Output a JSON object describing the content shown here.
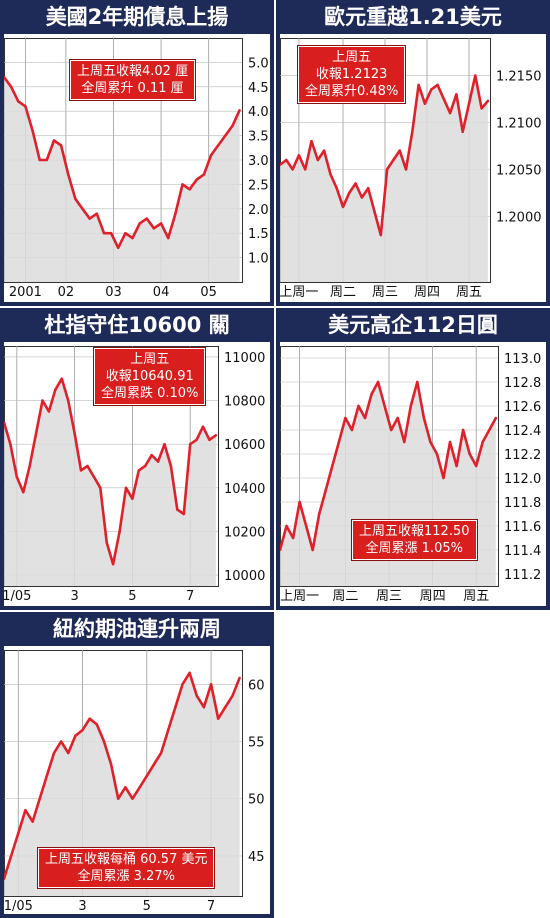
{
  "colors": {
    "panel": "#1e2a58",
    "line": "#e0202a",
    "fill": "#dcdcdc",
    "note": "#d91e1e"
  },
  "chart_data": [
    {
      "type": "area",
      "title": "美國2年期債息上揚",
      "annotation": [
        "上周五收報4.02 厘",
        "全周累升 0.11 厘"
      ],
      "ylim": [
        0.5,
        5.5
      ],
      "yticks": [
        1.0,
        1.5,
        2.0,
        2.5,
        3.0,
        3.5,
        4.0,
        4.5,
        5.0
      ],
      "ytick_labels": [
        "1.0",
        "1.5",
        "2.0",
        "2.5",
        "3.0",
        "3.5",
        "4.0",
        "4.5",
        "5.0"
      ],
      "xlim": [
        0,
        100
      ],
      "xticks": [
        {
          "x": 9,
          "label": "2001"
        },
        {
          "x": 26,
          "label": "02"
        },
        {
          "x": 46,
          "label": "03"
        },
        {
          "x": 66,
          "label": "04"
        },
        {
          "x": 86,
          "label": "05"
        }
      ],
      "series": [
        {
          "x": [
            0,
            3,
            6,
            9,
            12,
            15,
            18,
            21,
            24,
            27,
            30,
            33,
            36,
            39,
            42,
            45,
            48,
            51,
            54,
            57,
            60,
            63,
            66,
            69,
            72,
            75,
            78,
            81,
            84,
            87,
            90,
            93,
            96,
            99
          ],
          "y": [
            4.7,
            4.5,
            4.2,
            4.1,
            3.6,
            3.0,
            3.0,
            3.4,
            3.3,
            2.7,
            2.2,
            2.0,
            1.8,
            1.9,
            1.5,
            1.5,
            1.2,
            1.5,
            1.4,
            1.7,
            1.8,
            1.6,
            1.7,
            1.4,
            1.9,
            2.5,
            2.4,
            2.6,
            2.7,
            3.1,
            3.3,
            3.5,
            3.7,
            4.02
          ]
        }
      ]
    },
    {
      "type": "area",
      "title": "歐元重越1.21美元",
      "annotation": [
        "上周五",
        "收報1.2123",
        "全周累升0.48%"
      ],
      "ylim": [
        1.193,
        1.219
      ],
      "yticks": [
        1.2,
        1.205,
        1.21,
        1.215
      ],
      "ytick_labels": [
        "1.2000",
        "1.2050",
        "1.2100",
        "1.2150"
      ],
      "xlim": [
        0,
        100
      ],
      "xticks": [
        {
          "x": 9,
          "label": "上周一"
        },
        {
          "x": 30,
          "label": "周二"
        },
        {
          "x": 50,
          "label": "周三"
        },
        {
          "x": 70,
          "label": "周四"
        },
        {
          "x": 90,
          "label": "周五"
        }
      ],
      "series": [
        {
          "x": [
            0,
            3,
            6,
            9,
            12,
            15,
            18,
            21,
            24,
            27,
            30,
            33,
            36,
            39,
            42,
            45,
            48,
            51,
            54,
            57,
            60,
            63,
            66,
            69,
            72,
            75,
            78,
            81,
            84,
            87,
            90,
            93,
            96,
            99
          ],
          "y": [
            1.2055,
            1.206,
            1.205,
            1.2065,
            1.205,
            1.208,
            1.206,
            1.207,
            1.2045,
            1.203,
            1.201,
            1.2025,
            1.2035,
            1.202,
            1.203,
            1.2005,
            1.198,
            1.205,
            1.206,
            1.207,
            1.205,
            1.209,
            1.214,
            1.212,
            1.2135,
            1.214,
            1.2125,
            1.211,
            1.213,
            1.209,
            1.212,
            1.215,
            1.2115,
            1.2123
          ]
        }
      ]
    },
    {
      "type": "area",
      "title": "杜指守住10600 關",
      "annotation": [
        "上周五",
        "收報10640.91",
        "全周累跌 0.10%"
      ],
      "ylim": [
        9950,
        11050
      ],
      "yticks": [
        10000,
        10200,
        10400,
        10600,
        10800,
        11000
      ],
      "ytick_labels": [
        "10000",
        "10200",
        "10400",
        "10600",
        "10800",
        "11000"
      ],
      "xlim": [
        0,
        100
      ],
      "xticks": [
        {
          "x": 6,
          "label": "1/05"
        },
        {
          "x": 33,
          "label": "3"
        },
        {
          "x": 60,
          "label": "5"
        },
        {
          "x": 87,
          "label": "7"
        }
      ],
      "series": [
        {
          "x": [
            0,
            3,
            6,
            9,
            12,
            15,
            18,
            21,
            24,
            27,
            30,
            33,
            36,
            39,
            42,
            45,
            48,
            51,
            54,
            57,
            60,
            63,
            66,
            69,
            72,
            75,
            78,
            81,
            84,
            87,
            90,
            93,
            96,
            99
          ],
          "y": [
            10700,
            10600,
            10450,
            10380,
            10500,
            10650,
            10800,
            10750,
            10850,
            10900,
            10800,
            10650,
            10480,
            10500,
            10450,
            10400,
            10150,
            10050,
            10200,
            10400,
            10350,
            10480,
            10500,
            10550,
            10520,
            10600,
            10500,
            10300,
            10280,
            10600,
            10620,
            10680,
            10620,
            10640.91
          ]
        }
      ]
    },
    {
      "type": "area",
      "title": "美元高企112日圓",
      "annotation": [
        "上周五收報112.50",
        "全周累漲 1.05%"
      ],
      "ylim": [
        111.1,
        113.1
      ],
      "yticks": [
        111.2,
        111.4,
        111.6,
        111.8,
        112.0,
        112.2,
        112.4,
        112.6,
        112.8,
        113.0
      ],
      "ytick_labels": [
        "111.2",
        "111.4",
        "111.6",
        "111.8",
        "112.0",
        "112.2",
        "112.4",
        "112.6",
        "112.8",
        "113.0"
      ],
      "xlim": [
        0,
        100
      ],
      "xticks": [
        {
          "x": 9,
          "label": "上周一"
        },
        {
          "x": 30,
          "label": "周二"
        },
        {
          "x": 50,
          "label": "周三"
        },
        {
          "x": 70,
          "label": "周四"
        },
        {
          "x": 90,
          "label": "周五"
        }
      ],
      "series": [
        {
          "x": [
            0,
            3,
            6,
            9,
            12,
            15,
            18,
            21,
            24,
            27,
            30,
            33,
            36,
            39,
            42,
            45,
            48,
            51,
            54,
            57,
            60,
            63,
            66,
            69,
            72,
            75,
            78,
            81,
            84,
            87,
            90,
            93,
            96,
            99
          ],
          "y": [
            111.4,
            111.6,
            111.5,
            111.8,
            111.6,
            111.4,
            111.7,
            111.9,
            112.1,
            112.3,
            112.5,
            112.4,
            112.6,
            112.5,
            112.7,
            112.8,
            112.6,
            112.4,
            112.5,
            112.3,
            112.6,
            112.8,
            112.5,
            112.3,
            112.2,
            112.0,
            112.3,
            112.1,
            112.4,
            112.2,
            112.1,
            112.3,
            112.4,
            112.5
          ]
        }
      ]
    },
    {
      "type": "area",
      "title": "紐約期油連升兩周",
      "annotation": [
        "上周五收報每桶 60.57 美元",
        "全周累漲 3.27%"
      ],
      "ylim": [
        41.5,
        63
      ],
      "yticks": [
        45,
        50,
        55,
        60
      ],
      "ytick_labels": [
        "45",
        "50",
        "55",
        "60"
      ],
      "xlim": [
        0,
        100
      ],
      "xticks": [
        {
          "x": 6,
          "label": "1/05"
        },
        {
          "x": 33,
          "label": "3"
        },
        {
          "x": 60,
          "label": "5"
        },
        {
          "x": 87,
          "label": "7"
        }
      ],
      "series": [
        {
          "x": [
            0,
            3,
            6,
            9,
            12,
            15,
            18,
            21,
            24,
            27,
            30,
            33,
            36,
            39,
            42,
            45,
            48,
            51,
            54,
            57,
            60,
            63,
            66,
            69,
            72,
            75,
            78,
            81,
            84,
            87,
            90,
            93,
            96,
            99
          ],
          "y": [
            43,
            45,
            47,
            49,
            48,
            50,
            52,
            54,
            55,
            54,
            55.5,
            56,
            57,
            56.5,
            55,
            53,
            50,
            51,
            50,
            51,
            52,
            53,
            54,
            56,
            58,
            60,
            61,
            59,
            58,
            60,
            57,
            58,
            59,
            60.57
          ]
        }
      ]
    }
  ]
}
